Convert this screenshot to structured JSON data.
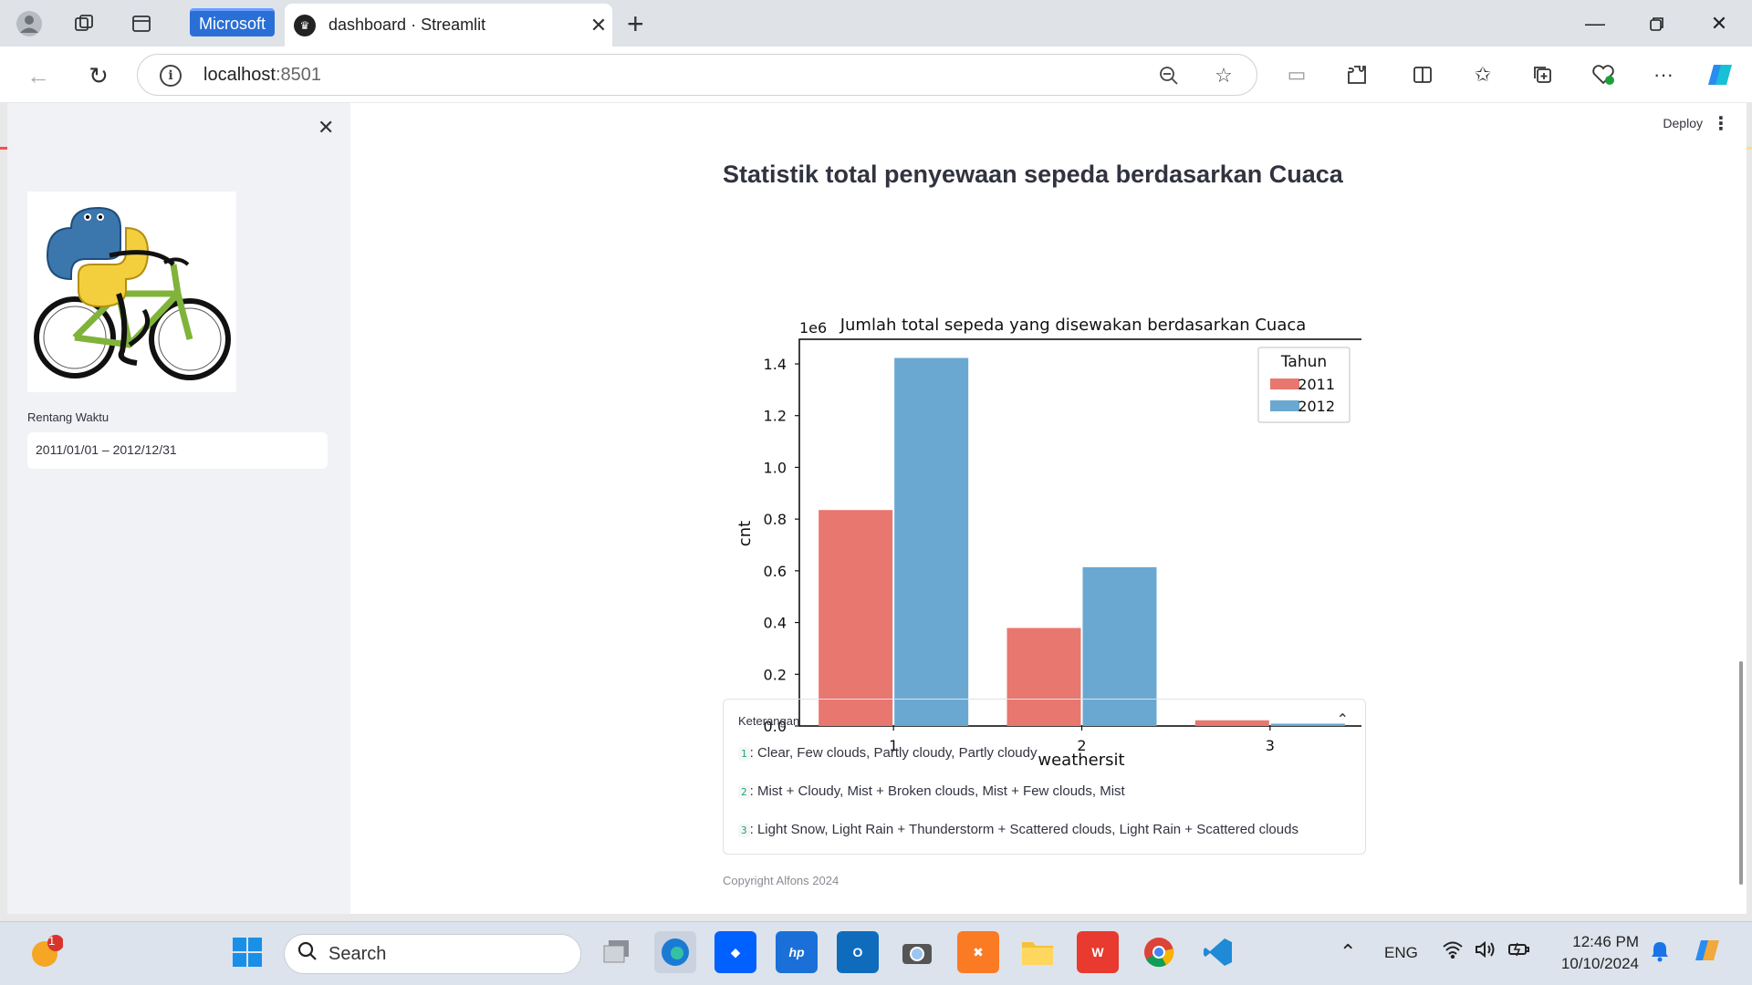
{
  "browser": {
    "ms_tab_label": "Microsoft",
    "tab_title": "dashboard · Streamlit",
    "url_host": "localhost",
    "url_port": ":8501"
  },
  "sidebar": {
    "date_label": "Rentang Waktu",
    "date_value": "2011/01/01 – 2012/12/31"
  },
  "header": {
    "deploy_label": "Deploy"
  },
  "main": {
    "title": "Statistik total penyewaan sepeda berdasarkan Cuaca",
    "expander_title": "Keterangan",
    "legend_items": [
      {
        "code": "1",
        "text": ": Clear, Few clouds, Partly cloudy, Partly cloudy"
      },
      {
        "code": "2",
        "text": ": Mist + Cloudy, Mist + Broken clouds, Mist + Few clouds, Mist"
      },
      {
        "code": "3",
        "text": ": Light Snow, Light Rain + Thunderstorm + Scattered clouds, Light Rain + Scattered clouds"
      }
    ],
    "copyright": "Copyright Alfons 2024"
  },
  "chart_data": {
    "type": "bar",
    "title": "Jumlah total sepeda yang disewakan berdasarkan Cuaca",
    "xlabel": "weathersit",
    "ylabel": "cnt",
    "scale_label": "1e6",
    "categories": [
      "1",
      "2",
      "3"
    ],
    "series": [
      {
        "name": "2011",
        "color": "#e8776f",
        "values": [
          0.835,
          0.379,
          0.022
        ]
      },
      {
        "name": "2012",
        "color": "#6aa8d2",
        "values": [
          1.423,
          0.614,
          0.009
        ]
      }
    ],
    "legend_title": "Tahun",
    "yticks": [
      "0.0",
      "0.2",
      "0.4",
      "0.6",
      "0.8",
      "1.0",
      "1.2",
      "1.4"
    ],
    "ylim": [
      0,
      1.5
    ],
    "grid": false,
    "legend_position": "top-right"
  },
  "taskbar": {
    "search_placeholder": "Search",
    "lang": "ENG",
    "time": "12:46 PM",
    "date": "10/10/2024",
    "notification_count": "1"
  }
}
